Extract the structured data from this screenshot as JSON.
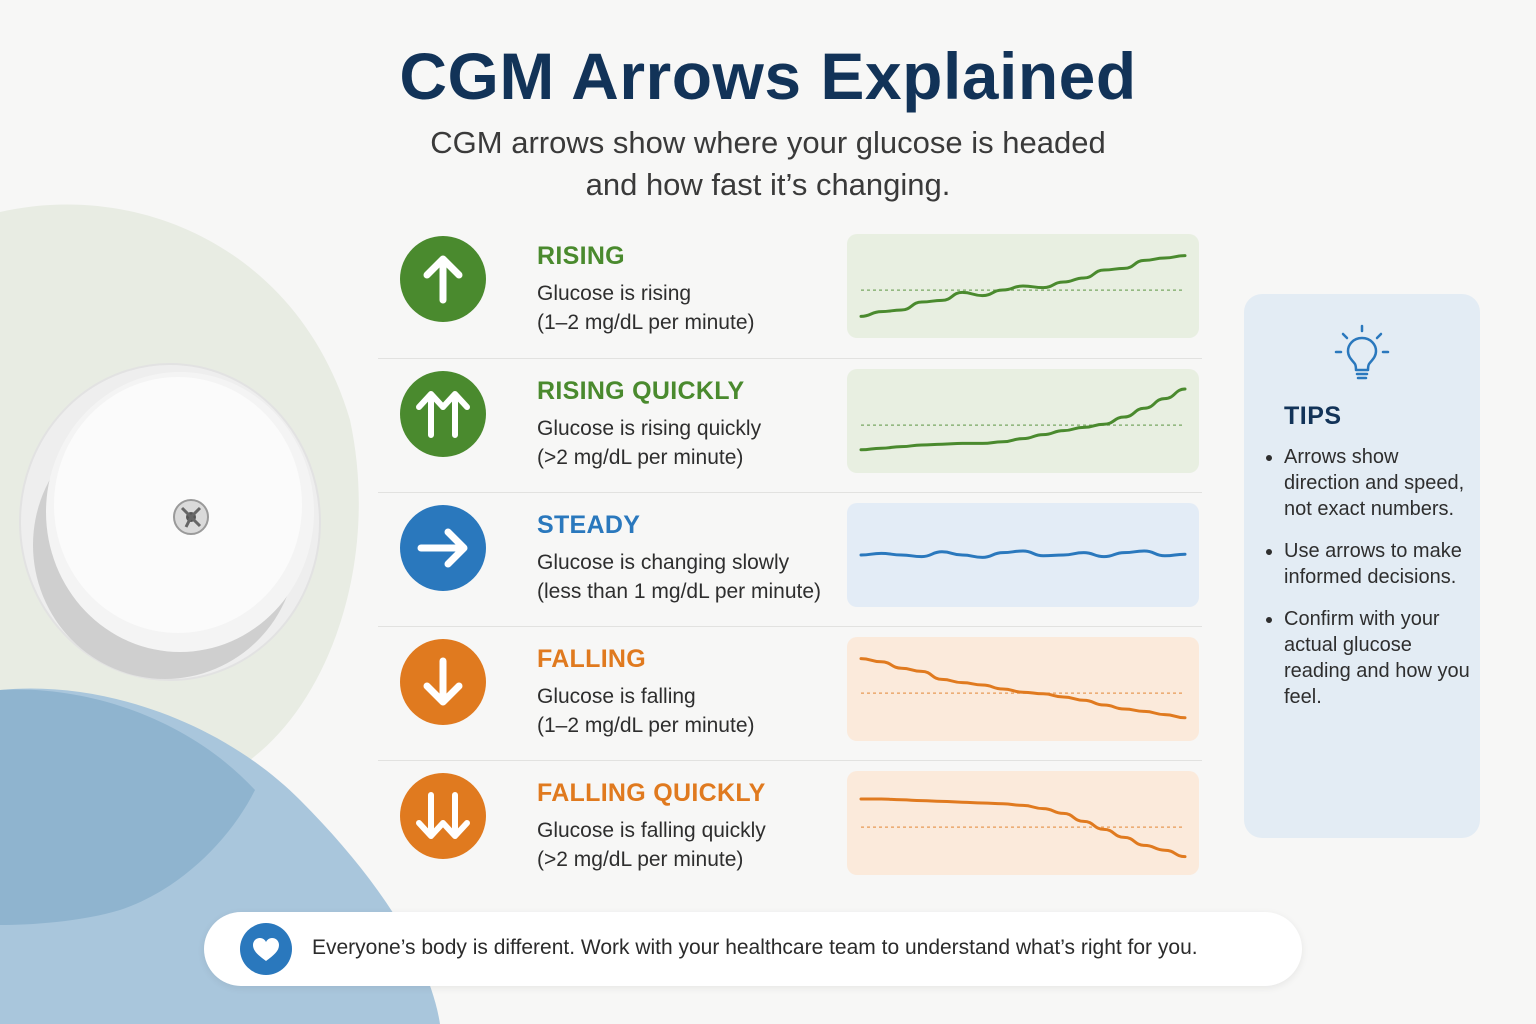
{
  "header": {
    "title": "CGM Arrows Explained",
    "subtitle_lines": [
      "CGM arrows show where your glucose is headed",
      "and how fast it’s changing."
    ]
  },
  "rows": [
    {
      "key": "rising",
      "title": "RISING",
      "line1": "Glucose is rising",
      "line2": "(1–2 mg/dL per minute)",
      "arrow": "up-arrow-icon",
      "color": "#4a8a2e",
      "chart_bg": "#e8efe1",
      "trend_points": [
        0.12,
        0.18,
        0.2,
        0.3,
        0.32,
        0.42,
        0.38,
        0.45,
        0.5,
        0.48,
        0.55,
        0.6,
        0.7,
        0.72,
        0.82,
        0.85,
        0.88
      ],
      "show_reference": true
    },
    {
      "key": "rising-quickly",
      "title": "RISING QUICKLY",
      "line1": "Glucose is rising quickly",
      "line2": "(>2 mg/dL per minute)",
      "arrow": "double-up-arrow-icon",
      "color": "#4a8a2e",
      "chart_bg": "#e8efe1",
      "trend_points": [
        0.14,
        0.16,
        0.18,
        0.2,
        0.21,
        0.22,
        0.22,
        0.24,
        0.28,
        0.33,
        0.38,
        0.42,
        0.46,
        0.55,
        0.66,
        0.78,
        0.9
      ],
      "show_reference": true
    },
    {
      "key": "steady",
      "title": "STEADY",
      "line1": "Glucose is changing slowly",
      "line2": "(less than 1 mg/dL per minute)",
      "arrow": "right-arrow-icon",
      "color": "#2a78bd",
      "chart_bg": "#e3ecf6",
      "trend_points": [
        0.5,
        0.52,
        0.5,
        0.48,
        0.54,
        0.5,
        0.47,
        0.53,
        0.55,
        0.49,
        0.5,
        0.53,
        0.48,
        0.53,
        0.55,
        0.49,
        0.51
      ],
      "show_reference": false
    },
    {
      "key": "falling",
      "title": "FALLING",
      "line1": "Glucose is falling",
      "line2": "(1–2 mg/dL per minute)",
      "arrow": "down-arrow-icon",
      "color": "#e07a1f",
      "chart_bg": "#fbeadb",
      "trend_points": [
        0.88,
        0.84,
        0.76,
        0.72,
        0.62,
        0.58,
        0.55,
        0.5,
        0.46,
        0.44,
        0.4,
        0.36,
        0.3,
        0.25,
        0.22,
        0.18,
        0.14
      ],
      "show_reference": true
    },
    {
      "key": "falling-quickly",
      "title": "FALLING QUICKLY",
      "line1": "Glucose is falling quickly",
      "line2": "(>2 mg/dL per minute)",
      "arrow": "double-down-arrow-icon",
      "color": "#e07a1f",
      "chart_bg": "#fbeadb",
      "trend_points": [
        0.8,
        0.8,
        0.79,
        0.78,
        0.77,
        0.76,
        0.75,
        0.74,
        0.72,
        0.68,
        0.62,
        0.52,
        0.42,
        0.32,
        0.22,
        0.16,
        0.08
      ],
      "show_reference": true
    }
  ],
  "tips": {
    "title": "TIPS",
    "icon": "lightbulb-icon",
    "items": [
      "Arrows show direction and speed, not exact numbers.",
      "Use arrows to make informed decisions.",
      "Confirm with your actual glucose reading and how you feel."
    ]
  },
  "footer": {
    "icon": "heart-icon",
    "text": "Everyone’s body is different. Work with your healthcare team to understand what’s right for you."
  },
  "colors": {
    "title": "#123358",
    "green": "#4a8a2e",
    "blue": "#2a78bd",
    "orange": "#e07a1f",
    "tips_bg": "#e3ecf4"
  }
}
